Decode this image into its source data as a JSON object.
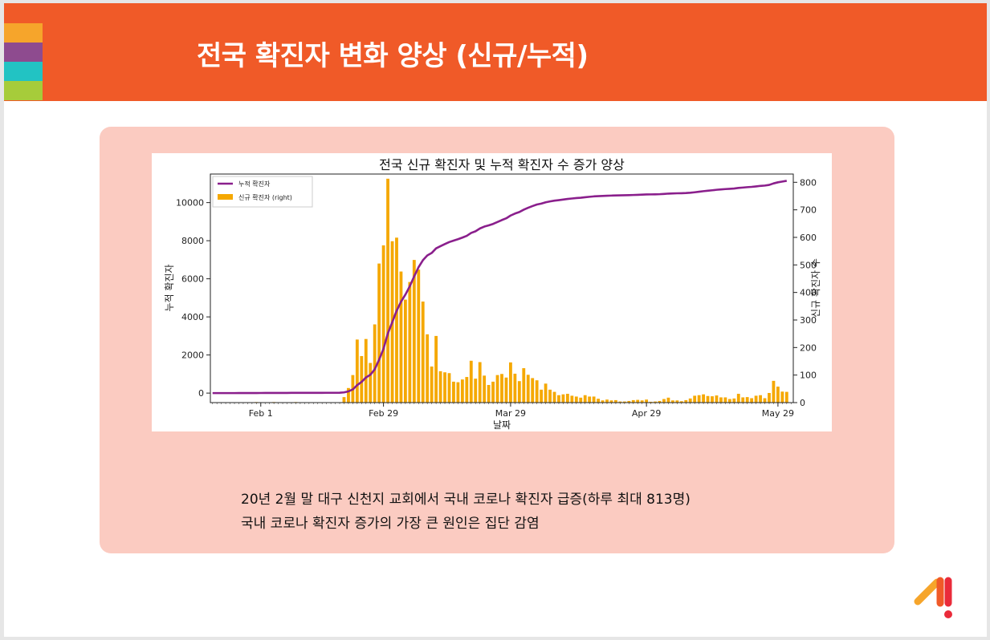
{
  "slide": {
    "title": "전국 확진자 변화 양상 (신규/누적)",
    "captions": [
      "20년 2월 말 대구 신천지 교회에서 국내 코로나 확진자 급증(하루 최대 813명)",
      "국내 코로나 확진자 증가의 가장 큰 원인은 집단 감염"
    ]
  },
  "colors": {
    "header": "#f05a28",
    "stripes": [
      "#f6a52b",
      "#8e4b8f",
      "#22c3c3",
      "#a6cc3a"
    ],
    "card": "#fbcbc1",
    "line": "#8a1f8c",
    "bar": "#f5a800"
  },
  "chart_data": {
    "type": "bar+line",
    "title": "전국 신규 확진자 및 누적 확진자 수 증가 양상",
    "xlabel": "날짜",
    "ylabel_left": "누적 확진자",
    "ylabel_right": "신규 확진자 수",
    "xticks": [
      {
        "label": "Feb 1",
        "day": 11
      },
      {
        "label": "Feb 29",
        "day": 39
      },
      {
        "label": "Mar 29",
        "day": 68
      },
      {
        "label": "Apr 29",
        "day": 99
      },
      {
        "label": "May 29",
        "day": 129
      }
    ],
    "x_range_days": [
      -0.5,
      132.5
    ],
    "ylim_left": [
      -500,
      11500
    ],
    "yticks_left": [
      0,
      2000,
      4000,
      6000,
      8000,
      10000
    ],
    "ylim_right": [
      0,
      830
    ],
    "yticks_right": [
      0,
      100,
      200,
      300,
      400,
      500,
      600,
      700,
      800
    ],
    "legend": {
      "position": "top-left",
      "entries": [
        "누적 확진자",
        "신규 확진자 (right)"
      ]
    },
    "series": [
      {
        "name": "신규 확진자 (right)",
        "axis": "right",
        "kind": "bar",
        "values": [
          0,
          0,
          0,
          0,
          0,
          0,
          1,
          0,
          0,
          1,
          2,
          1,
          1,
          0,
          2,
          1,
          1,
          0,
          1,
          2,
          1,
          0,
          0,
          0,
          0,
          1,
          1,
          0,
          0,
          1,
          20,
          53,
          100,
          229,
          169,
          231,
          144,
          284,
          505,
          571,
          813,
          586,
          599,
          476,
          374,
          438,
          518,
          483,
          367,
          248,
          131,
          242,
          114,
          110,
          107,
          76,
          74,
          84,
          93,
          152,
          87,
          147,
          98,
          64,
          76,
          100,
          104,
          91,
          146,
          105,
          78,
          125,
          101,
          89,
          81,
          47,
          69,
          47,
          39,
          27,
          30,
          32,
          25,
          22,
          18,
          27,
          22,
          22,
          14,
          8,
          11,
          8,
          9,
          4,
          4,
          6,
          9,
          10,
          8,
          11,
          3,
          4,
          6,
          13,
          18,
          8,
          8,
          5,
          9,
          15,
          25,
          27,
          30,
          24,
          23,
          26,
          19,
          19,
          13,
          15,
          32,
          19,
          20,
          16,
          25,
          27,
          16,
          35,
          79,
          58,
          40,
          39
        ]
      },
      {
        "name": "누적 확진자",
        "axis": "left",
        "kind": "line",
        "values": [
          0,
          0,
          0,
          0,
          0,
          0,
          1,
          1,
          1,
          2,
          4,
          5,
          6,
          6,
          8,
          9,
          10,
          10,
          11,
          13,
          14,
          14,
          14,
          14,
          14,
          15,
          16,
          16,
          16,
          17,
          37,
          90,
          190,
          419,
          588,
          819,
          963,
          1247,
          1752,
          2323,
          3136,
          3722,
          4321,
          4797,
          5171,
          5609,
          6127,
          6610,
          6977,
          7225,
          7356,
          7598,
          7712,
          7822,
          7929,
          8005,
          8079,
          8163,
          8256,
          8408,
          8495,
          8642,
          8740,
          8804,
          8880,
          8980,
          9084,
          9175,
          9321,
          9426,
          9504,
          9629,
          9730,
          9819,
          9900,
          9947,
          10016,
          10063,
          10102,
          10129,
          10159,
          10191,
          10216,
          10238,
          10256,
          10283,
          10305,
          10327,
          10341,
          10349,
          10360,
          10368,
          10377,
          10381,
          10385,
          10391,
          10400,
          10410,
          10418,
          10429,
          10432,
          10436,
          10442,
          10455,
          10473,
          10481,
          10489,
          10494,
          10503,
          10518,
          10543,
          10570,
          10600,
          10624,
          10647,
          10673,
          10692,
          10711,
          10724,
          10739,
          10771,
          10790,
          10810,
          10826,
          10851,
          10878,
          10894,
          10929,
          11008,
          11066,
          11106,
          11145
        ]
      }
    ]
  }
}
